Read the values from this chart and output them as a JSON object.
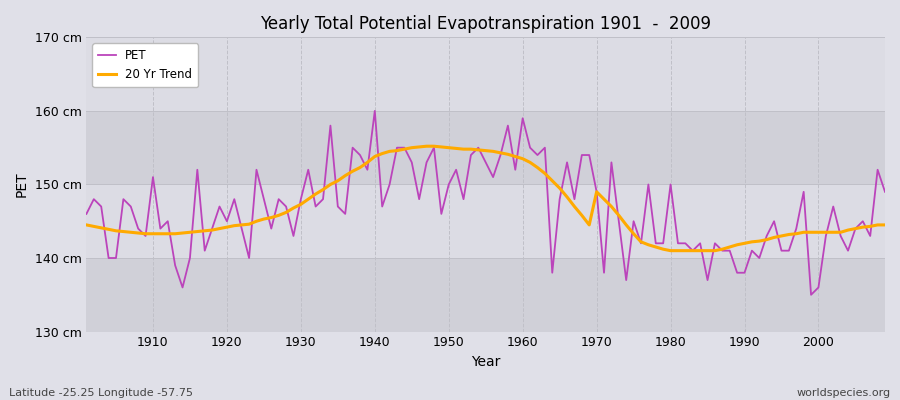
{
  "title": "Yearly Total Potential Evapotranspiration 1901  -  2009",
  "xlabel": "Year",
  "ylabel": "PET",
  "subtitle_left": "Latitude -25.25 Longitude -57.75",
  "subtitle_right": "worldspecies.org",
  "ylim": [
    130,
    170
  ],
  "yticks": [
    130,
    140,
    150,
    160,
    170
  ],
  "ytick_labels": [
    "130 cm",
    "140 cm",
    "150 cm",
    "160 cm",
    "170 cm"
  ],
  "pet_color": "#bb44bb",
  "trend_color": "#ffaa00",
  "fig_bg_color": "#e0e0e8",
  "plot_bg_color": "#d8d8e0",
  "band_colors": [
    "#d0d0d8",
    "#dcdce4"
  ],
  "grid_color": "#c0c0c8",
  "years": [
    1901,
    1902,
    1903,
    1904,
    1905,
    1906,
    1907,
    1908,
    1909,
    1910,
    1911,
    1912,
    1913,
    1914,
    1915,
    1916,
    1917,
    1918,
    1919,
    1920,
    1921,
    1922,
    1923,
    1924,
    1925,
    1926,
    1927,
    1928,
    1929,
    1930,
    1931,
    1932,
    1933,
    1934,
    1935,
    1936,
    1937,
    1938,
    1939,
    1940,
    1941,
    1942,
    1943,
    1944,
    1945,
    1946,
    1947,
    1948,
    1949,
    1950,
    1951,
    1952,
    1953,
    1954,
    1955,
    1956,
    1957,
    1958,
    1959,
    1960,
    1961,
    1962,
    1963,
    1964,
    1965,
    1966,
    1967,
    1968,
    1969,
    1970,
    1971,
    1972,
    1973,
    1974,
    1975,
    1976,
    1977,
    1978,
    1979,
    1980,
    1981,
    1982,
    1983,
    1984,
    1985,
    1986,
    1987,
    1988,
    1989,
    1990,
    1991,
    1992,
    1993,
    1994,
    1995,
    1996,
    1997,
    1998,
    1999,
    2000,
    2001,
    2002,
    2003,
    2004,
    2005,
    2006,
    2007,
    2008,
    2009
  ],
  "pet_values": [
    146,
    148,
    147,
    140,
    140,
    148,
    147,
    144,
    143,
    151,
    144,
    145,
    139,
    136,
    140,
    152,
    141,
    144,
    147,
    145,
    148,
    144,
    140,
    152,
    148,
    144,
    148,
    147,
    143,
    148,
    152,
    147,
    148,
    158,
    147,
    146,
    155,
    154,
    152,
    160,
    147,
    150,
    155,
    155,
    153,
    148,
    153,
    155,
    146,
    150,
    152,
    148,
    154,
    155,
    153,
    151,
    154,
    158,
    152,
    159,
    155,
    154,
    155,
    138,
    148,
    153,
    148,
    154,
    154,
    149,
    138,
    153,
    145,
    137,
    145,
    142,
    150,
    142,
    142,
    150,
    142,
    142,
    141,
    142,
    137,
    142,
    141,
    141,
    138,
    138,
    141,
    140,
    143,
    145,
    141,
    141,
    144,
    149,
    135,
    136,
    143,
    147,
    143,
    141,
    144,
    145,
    143,
    152,
    149
  ],
  "trend_values": [
    144.5,
    144.3,
    144.1,
    143.9,
    143.7,
    143.6,
    143.5,
    143.4,
    143.3,
    143.3,
    143.3,
    143.3,
    143.3,
    143.4,
    143.5,
    143.6,
    143.7,
    143.8,
    144.0,
    144.2,
    144.4,
    144.5,
    144.6,
    145.0,
    145.3,
    145.5,
    145.8,
    146.2,
    146.8,
    147.3,
    148.0,
    148.7,
    149.3,
    150.0,
    150.5,
    151.2,
    151.8,
    152.3,
    153.0,
    153.8,
    154.2,
    154.5,
    154.6,
    154.8,
    155.0,
    155.1,
    155.2,
    155.2,
    155.1,
    155.0,
    154.9,
    154.8,
    154.8,
    154.7,
    154.6,
    154.5,
    154.3,
    154.1,
    153.8,
    153.5,
    153.0,
    152.3,
    151.5,
    150.5,
    149.5,
    148.3,
    147.0,
    145.8,
    144.5,
    149.0,
    148.0,
    147.0,
    145.8,
    144.5,
    143.3,
    142.2,
    141.8,
    141.5,
    141.2,
    141.0,
    141.0,
    141.0,
    141.0,
    141.0,
    141.0,
    141.0,
    141.2,
    141.5,
    141.8,
    142.0,
    142.2,
    142.3,
    142.5,
    142.8,
    143.0,
    143.2,
    143.3,
    143.5,
    143.5,
    143.5,
    143.5,
    143.5,
    143.5,
    143.8,
    144.0,
    144.2,
    144.3,
    144.5,
    144.5
  ]
}
